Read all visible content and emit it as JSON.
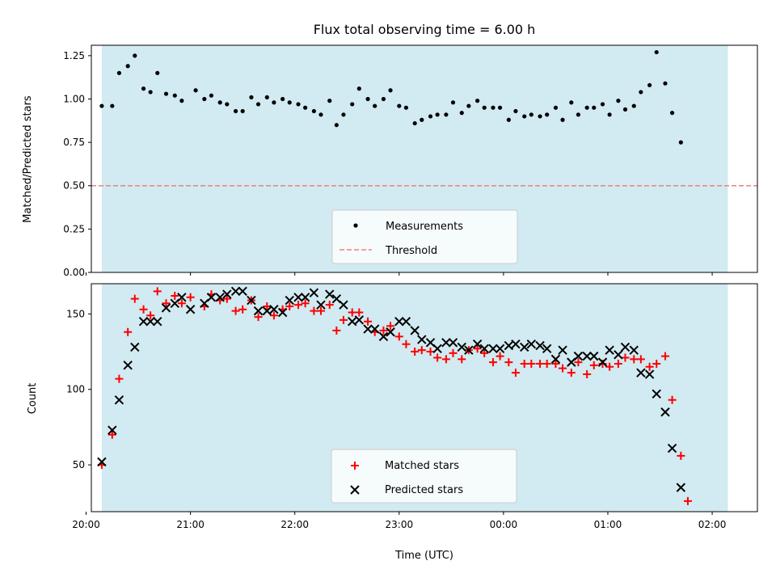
{
  "title": "Flux total observing time = 6.00 h",
  "xlabel": "Time (UTC)",
  "colors": {
    "shade": "#add8e6",
    "measurement": "#000000",
    "threshold": "#f08080",
    "matched": "#ff0000",
    "predicted": "#000000"
  },
  "chart_data": [
    {
      "type": "scatter",
      "ylabel": "Matched/Predicted stars",
      "xlim": [
        "20:03",
        "02:26"
      ],
      "ylim": [
        0,
        1.31
      ],
      "yticks": [
        "0.00",
        "0.25",
        "0.50",
        "0.75",
        "1.00",
        "1.25"
      ],
      "shaded_span": [
        "20:09",
        "02:09"
      ],
      "threshold": 0.5,
      "legend": {
        "position": "lower center",
        "entries": [
          "Measurements",
          "Threshold"
        ]
      },
      "series": [
        {
          "name": "Measurements",
          "marker": "dot",
          "points": [
            [
              "20:09",
              0.96
            ],
            [
              "20:15",
              0.96
            ],
            [
              "20:19",
              1.15
            ],
            [
              "20:24",
              1.19
            ],
            [
              "20:28",
              1.25
            ],
            [
              "20:33",
              1.06
            ],
            [
              "20:37",
              1.04
            ],
            [
              "20:41",
              1.15
            ],
            [
              "20:46",
              1.03
            ],
            [
              "20:51",
              1.02
            ],
            [
              "20:55",
              0.99
            ],
            [
              "21:03",
              1.05
            ],
            [
              "21:08",
              1.0
            ],
            [
              "21:12",
              1.02
            ],
            [
              "21:17",
              0.98
            ],
            [
              "21:21",
              0.97
            ],
            [
              "21:26",
              0.93
            ],
            [
              "21:30",
              0.93
            ],
            [
              "21:35",
              1.01
            ],
            [
              "21:39",
              0.97
            ],
            [
              "21:44",
              1.01
            ],
            [
              "21:48",
              0.98
            ],
            [
              "21:53",
              1.0
            ],
            [
              "21:57",
              0.98
            ],
            [
              "22:02",
              0.97
            ],
            [
              "22:06",
              0.95
            ],
            [
              "22:11",
              0.93
            ],
            [
              "22:15",
              0.91
            ],
            [
              "22:20",
              0.99
            ],
            [
              "22:24",
              0.85
            ],
            [
              "22:28",
              0.91
            ],
            [
              "22:33",
              0.97
            ],
            [
              "22:37",
              1.06
            ],
            [
              "22:42",
              1.0
            ],
            [
              "22:46",
              0.96
            ],
            [
              "22:51",
              1.0
            ],
            [
              "22:55",
              1.05
            ],
            [
              "23:00",
              0.96
            ],
            [
              "23:04",
              0.95
            ],
            [
              "23:09",
              0.86
            ],
            [
              "23:13",
              0.88
            ],
            [
              "23:18",
              0.9
            ],
            [
              "23:22",
              0.91
            ],
            [
              "23:27",
              0.91
            ],
            [
              "23:31",
              0.98
            ],
            [
              "23:36",
              0.92
            ],
            [
              "23:40",
              0.96
            ],
            [
              "23:45",
              0.99
            ],
            [
              "23:49",
              0.95
            ],
            [
              "23:54",
              0.95
            ],
            [
              "23:58",
              0.95
            ],
            [
              "00:03",
              0.88
            ],
            [
              "00:07",
              0.93
            ],
            [
              "00:12",
              0.9
            ],
            [
              "00:16",
              0.91
            ],
            [
              "00:21",
              0.9
            ],
            [
              "00:25",
              0.91
            ],
            [
              "00:30",
              0.95
            ],
            [
              "00:34",
              0.88
            ],
            [
              "00:39",
              0.98
            ],
            [
              "00:43",
              0.91
            ],
            [
              "00:48",
              0.95
            ],
            [
              "00:52",
              0.95
            ],
            [
              "00:57",
              0.97
            ],
            [
              "01:01",
              0.91
            ],
            [
              "01:06",
              0.99
            ],
            [
              "01:10",
              0.94
            ],
            [
              "01:15",
              0.96
            ],
            [
              "01:19",
              1.04
            ],
            [
              "01:24",
              1.08
            ],
            [
              "01:28",
              1.27
            ],
            [
              "01:33",
              1.09
            ],
            [
              "01:37",
              0.92
            ],
            [
              "01:42",
              0.75
            ]
          ]
        }
      ]
    },
    {
      "type": "scatter",
      "ylabel": "Count",
      "xlim": [
        "20:03",
        "02:26"
      ],
      "ylim": [
        19,
        170
      ],
      "yticks": [
        "50",
        "100",
        "150"
      ],
      "xticks": [
        "20:00",
        "21:00",
        "22:00",
        "23:00",
        "00:00",
        "01:00",
        "02:00"
      ],
      "shaded_span": [
        "20:09",
        "02:09"
      ],
      "legend": {
        "position": "lower center",
        "entries": [
          "Matched stars",
          "Predicted stars"
        ]
      },
      "series": [
        {
          "name": "Matched stars",
          "marker": "plus",
          "points": [
            [
              "20:09",
              50
            ],
            [
              "20:15",
              70
            ],
            [
              "20:19",
              107
            ],
            [
              "20:24",
              138
            ],
            [
              "20:28",
              160
            ],
            [
              "20:33",
              153
            ],
            [
              "20:37",
              149
            ],
            [
              "20:41",
              165
            ],
            [
              "20:46",
              157
            ],
            [
              "20:51",
              162
            ],
            [
              "20:55",
              157
            ],
            [
              "21:00",
              161
            ],
            [
              "21:08",
              155
            ],
            [
              "21:12",
              163
            ],
            [
              "21:17",
              159
            ],
            [
              "21:21",
              160
            ],
            [
              "21:26",
              152
            ],
            [
              "21:30",
              153
            ],
            [
              "21:35",
              159
            ],
            [
              "21:39",
              148
            ],
            [
              "21:44",
              155
            ],
            [
              "21:48",
              149
            ],
            [
              "21:53",
              153
            ],
            [
              "21:57",
              155
            ],
            [
              "22:02",
              156
            ],
            [
              "22:06",
              157
            ],
            [
              "22:11",
              152
            ],
            [
              "22:15",
              152
            ],
            [
              "22:20",
              156
            ],
            [
              "22:24",
              139
            ],
            [
              "22:28",
              146
            ],
            [
              "22:33",
              151
            ],
            [
              "22:37",
              151
            ],
            [
              "22:42",
              145
            ],
            [
              "22:46",
              138
            ],
            [
              "22:51",
              139
            ],
            [
              "22:55",
              142
            ],
            [
              "23:00",
              135
            ],
            [
              "23:04",
              130
            ],
            [
              "23:09",
              125
            ],
            [
              "23:13",
              126
            ],
            [
              "23:18",
              125
            ],
            [
              "23:22",
              121
            ],
            [
              "23:27",
              120
            ],
            [
              "23:31",
              124
            ],
            [
              "23:36",
              120
            ],
            [
              "23:40",
              126
            ],
            [
              "23:45",
              127
            ],
            [
              "23:49",
              124
            ],
            [
              "23:54",
              118
            ],
            [
              "23:58",
              122
            ],
            [
              "00:03",
              118
            ],
            [
              "00:07",
              111
            ],
            [
              "00:12",
              117
            ],
            [
              "00:16",
              117
            ],
            [
              "00:21",
              117
            ],
            [
              "00:25",
              117
            ],
            [
              "00:30",
              117
            ],
            [
              "00:34",
              114
            ],
            [
              "00:39",
              111
            ],
            [
              "00:43",
              118
            ],
            [
              "00:48",
              110
            ],
            [
              "00:52",
              116
            ],
            [
              "00:57",
              117
            ],
            [
              "01:01",
              115
            ],
            [
              "01:06",
              117
            ],
            [
              "01:10",
              121
            ],
            [
              "01:15",
              120
            ],
            [
              "01:19",
              120
            ],
            [
              "01:24",
              115
            ],
            [
              "01:28",
              117
            ],
            [
              "01:33",
              122
            ],
            [
              "01:37",
              93
            ],
            [
              "01:42",
              56
            ],
            [
              "01:46",
              26
            ]
          ]
        },
        {
          "name": "Predicted stars",
          "marker": "x",
          "points": [
            [
              "20:09",
              52
            ],
            [
              "20:15",
              73
            ],
            [
              "20:19",
              93
            ],
            [
              "20:24",
              116
            ],
            [
              "20:28",
              128
            ],
            [
              "20:33",
              145
            ],
            [
              "20:37",
              145
            ],
            [
              "20:41",
              145
            ],
            [
              "20:46",
              154
            ],
            [
              "20:51",
              157
            ],
            [
              "20:55",
              161
            ],
            [
              "21:00",
              153
            ],
            [
              "21:08",
              157
            ],
            [
              "21:12",
              161
            ],
            [
              "21:17",
              161
            ],
            [
              "21:21",
              163
            ],
            [
              "21:26",
              165
            ],
            [
              "21:30",
              165
            ],
            [
              "21:35",
              159
            ],
            [
              "21:39",
              152
            ],
            [
              "21:44",
              152
            ],
            [
              "21:48",
              153
            ],
            [
              "21:53",
              151
            ],
            [
              "21:57",
              159
            ],
            [
              "22:02",
              161
            ],
            [
              "22:06",
              161
            ],
            [
              "22:11",
              164
            ],
            [
              "22:15",
              156
            ],
            [
              "22:20",
              163
            ],
            [
              "22:24",
              160
            ],
            [
              "22:28",
              156
            ],
            [
              "22:33",
              145
            ],
            [
              "22:37",
              146
            ],
            [
              "22:42",
              140
            ],
            [
              "22:46",
              140
            ],
            [
              "22:51",
              135
            ],
            [
              "22:55",
              138
            ],
            [
              "23:00",
              145
            ],
            [
              "23:04",
              145
            ],
            [
              "23:09",
              139
            ],
            [
              "23:13",
              133
            ],
            [
              "23:18",
              131
            ],
            [
              "23:22",
              127
            ],
            [
              "23:27",
              131
            ],
            [
              "23:31",
              131
            ],
            [
              "23:36",
              128
            ],
            [
              "23:40",
              126
            ],
            [
              "23:45",
              130
            ],
            [
              "23:49",
              127
            ],
            [
              "23:54",
              127
            ],
            [
              "23:58",
              127
            ],
            [
              "00:03",
              129
            ],
            [
              "00:07",
              130
            ],
            [
              "00:12",
              128
            ],
            [
              "00:16",
              130
            ],
            [
              "00:21",
              129
            ],
            [
              "00:25",
              127
            ],
            [
              "00:30",
              120
            ],
            [
              "00:34",
              126
            ],
            [
              "00:39",
              118
            ],
            [
              "00:43",
              122
            ],
            [
              "00:48",
              122
            ],
            [
              "00:52",
              122
            ],
            [
              "00:57",
              118
            ],
            [
              "01:01",
              126
            ],
            [
              "01:06",
              123
            ],
            [
              "01:10",
              128
            ],
            [
              "01:15",
              126
            ],
            [
              "01:19",
              111
            ],
            [
              "01:24",
              110
            ],
            [
              "01:28",
              97
            ],
            [
              "01:33",
              85
            ],
            [
              "01:37",
              61
            ],
            [
              "01:42",
              35
            ]
          ]
        }
      ]
    }
  ]
}
